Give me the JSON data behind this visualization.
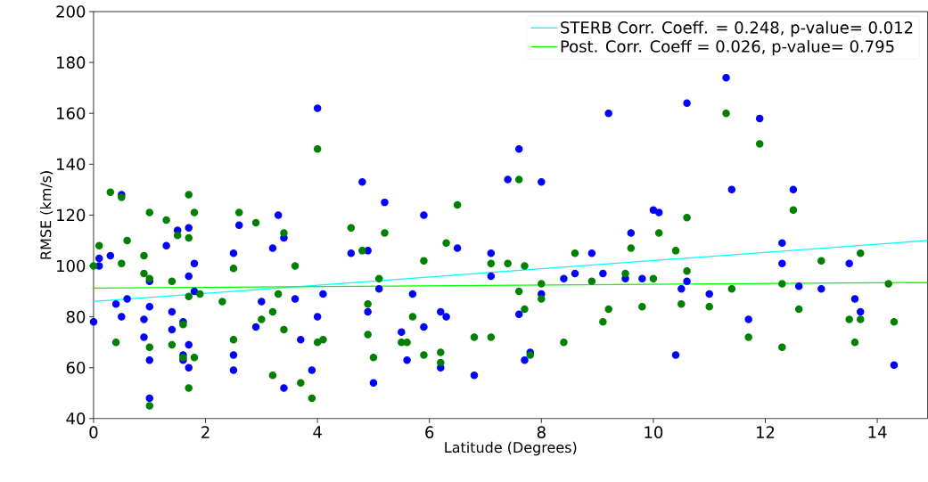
{
  "chart_data": {
    "type": "scatter",
    "xlabel": "Latitude (Degrees)",
    "ylabel": "RMSE (km/s)",
    "xlim": [
      0,
      14.9
    ],
    "ylim": [
      40,
      200
    ],
    "xticks": [
      0,
      2,
      4,
      6,
      8,
      10,
      12,
      14
    ],
    "yticks": [
      40,
      60,
      80,
      100,
      120,
      140,
      160,
      180,
      200
    ],
    "legend": "top right",
    "marker": "circle",
    "series": [
      {
        "color": "#0000ff",
        "x": [
          0,
          0.1,
          0.1,
          0.3,
          0.4,
          0.5,
          0.5,
          0.6,
          0.9,
          0.9,
          1,
          1,
          1,
          1,
          1.3,
          1.4,
          1.4,
          1.5,
          1.6,
          1.6,
          1.6,
          1.7,
          1.7,
          1.7,
          1.7,
          1.8,
          1.8,
          2.5,
          2.5,
          2.5,
          2.6,
          2.9,
          3.0,
          3.2,
          3.3,
          3.4,
          3.4,
          3.6,
          3.7,
          3.9,
          4.0,
          4.0,
          4.1,
          4.6,
          4.8,
          4.9,
          4.9,
          5.0,
          5.1,
          5.2,
          5.5,
          5.6,
          5.7,
          5.9,
          5.9,
          6.2,
          6.2,
          6.3,
          6.5,
          6.8,
          7.1,
          7.1,
          7.4,
          7.6,
          7.6,
          7.7,
          7.8,
          8.0,
          8.0,
          8.4,
          8.6,
          8.9,
          9.1,
          9.2,
          9.5,
          9.6,
          9.8,
          10.0,
          10.1,
          10.4,
          10.5,
          10.6,
          10.6,
          11.0,
          11.3,
          11.4,
          11.7,
          11.9,
          12.3,
          12.3,
          12.5,
          12.6,
          13.0,
          13.5,
          13.6,
          13.7,
          14.3
        ],
        "values": [
          78,
          103,
          100,
          104,
          85,
          128,
          80,
          87,
          79,
          72,
          63,
          84,
          48,
          94,
          108,
          82,
          75,
          114,
          78,
          65,
          63,
          115,
          96,
          69,
          60,
          101,
          90,
          105,
          65,
          59,
          116,
          76,
          86,
          107,
          120,
          111,
          52,
          87,
          71,
          59,
          162,
          80,
          89,
          105,
          133,
          82,
          106,
          54,
          91,
          125,
          74,
          63,
          89,
          120,
          76,
          82,
          60,
          80,
          107,
          57,
          105,
          96,
          134,
          146,
          81,
          63,
          66,
          133,
          89,
          95,
          97,
          105,
          97,
          160,
          95,
          113,
          95,
          122,
          121,
          65,
          91,
          164,
          94,
          89,
          174,
          130,
          79,
          158,
          109,
          101,
          130,
          92,
          91,
          101,
          87,
          82,
          61
        ]
      },
      {
        "color": "#008000",
        "x": [
          0,
          0.1,
          0.3,
          0.4,
          0.5,
          0.5,
          0.6,
          0.9,
          0.9,
          1.0,
          1.0,
          1.0,
          1.0,
          1.3,
          1.4,
          1.4,
          1.5,
          1.6,
          1.7,
          1.7,
          1.7,
          1.7,
          1.6,
          1.8,
          1.8,
          1.9,
          2.3,
          2.5,
          2.5,
          2.6,
          2.9,
          3.0,
          3.2,
          3.2,
          3.3,
          3.4,
          3.4,
          3.6,
          3.7,
          3.9,
          4.0,
          4.0,
          4.1,
          4.6,
          4.8,
          4.9,
          4.9,
          5.0,
          5.1,
          5.2,
          5.5,
          5.6,
          5.7,
          5.9,
          5.9,
          6.2,
          6.2,
          6.3,
          6.5,
          6.8,
          7.1,
          7.1,
          7.4,
          7.6,
          7.6,
          7.7,
          7.7,
          7.8,
          8.0,
          8.0,
          8.4,
          8.6,
          8.9,
          9.1,
          9.2,
          9.5,
          9.6,
          9.8,
          10.0,
          10.1,
          10.4,
          10.5,
          10.6,
          10.6,
          11.0,
          11.3,
          11.4,
          11.7,
          11.9,
          12.3,
          12.3,
          12.5,
          12.6,
          13.0,
          13.5,
          13.6,
          13.7,
          13.7,
          14.2,
          14.3
        ],
        "values": [
          100,
          108,
          129,
          70,
          127,
          101,
          110,
          104,
          97,
          121,
          95,
          68,
          45,
          118,
          94,
          69,
          112,
          77,
          128,
          111,
          88,
          52,
          64,
          121,
          64,
          89,
          86,
          99,
          71,
          121,
          117,
          79,
          82,
          57,
          89,
          113,
          75,
          100,
          54,
          48,
          146,
          70,
          71,
          115,
          106,
          85,
          73,
          64,
          95,
          113,
          70,
          70,
          80,
          102,
          65,
          66,
          62,
          109,
          124,
          72,
          101,
          72,
          101,
          134,
          90,
          100,
          83,
          65,
          93,
          87,
          70,
          105,
          94,
          78,
          83,
          97,
          107,
          84,
          95,
          113,
          106,
          85,
          119,
          98,
          84,
          160,
          91,
          72,
          148,
          68,
          93,
          122,
          83,
          102,
          79,
          70,
          79,
          105,
          93,
          78
        ]
      },
      {
        "type": "line",
        "marker": "none",
        "name": "STERB Corr. Coeff. = 0.248, p-value= 0.012",
        "color": "#00ffff",
        "x": [
          0,
          14.9
        ],
        "values": [
          86,
          110
        ]
      },
      {
        "type": "line",
        "marker": "none",
        "name": "Post. Corr. Coeff  = 0.026, p-value= 0.795",
        "color": "#00ff00",
        "x": [
          0,
          14.9
        ],
        "values": [
          91.3,
          93.5
        ]
      }
    ]
  }
}
